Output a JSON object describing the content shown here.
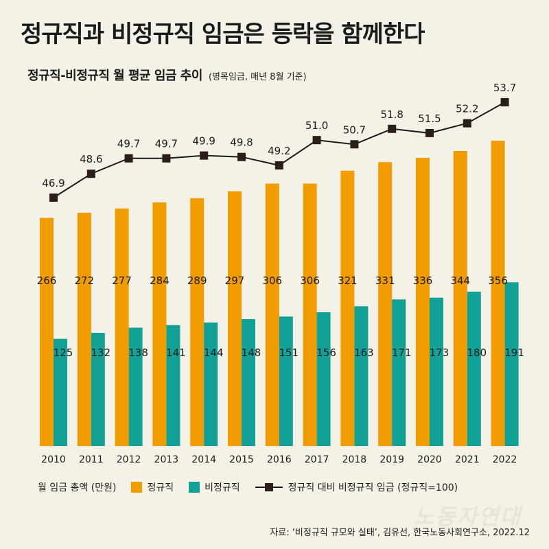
{
  "title": "정규직과 비정규직 임금은 등락을 함께한다",
  "subtitle": "정규직-비정규직 월 평균 임금 추이",
  "subtitle_note": "(명목임금, 매년 8월 기준)",
  "legend": {
    "unit_label": "월 임금 총액 (만원)",
    "regular": "정규직",
    "nonregular": "비정규직",
    "ratio": "정규직 대비 비정규직 임금 (정규직=100)"
  },
  "source": "자료: ‘비정규직 규모와 실태’, 김유선, 한국노동사회연구소, 2022.12",
  "watermark": "노동자연대",
  "colors": {
    "regular": "#f19c00",
    "nonregular": "#12a197",
    "ratio_line": "#1a1a1a",
    "ratio_marker": "#2b1d1a",
    "background": "#f4f2e6"
  },
  "chart_data": {
    "type": "bar",
    "categories": [
      "2010",
      "2011",
      "2012",
      "2013",
      "2014",
      "2015",
      "2016",
      "2017",
      "2018",
      "2019",
      "2020",
      "2021",
      "2022"
    ],
    "series": [
      {
        "name": "정규직",
        "type": "bar",
        "values": [
          266,
          272,
          277,
          284,
          289,
          297,
          306,
          306,
          321,
          331,
          336,
          344,
          356
        ]
      },
      {
        "name": "비정규직",
        "type": "bar",
        "values": [
          125,
          132,
          138,
          141,
          144,
          148,
          151,
          156,
          163,
          171,
          173,
          180,
          191
        ]
      },
      {
        "name": "정규직 대비 비정규직 임금 (정규직=100)",
        "type": "line",
        "values": [
          46.9,
          48.6,
          49.7,
          49.7,
          49.9,
          49.8,
          49.2,
          51.0,
          50.7,
          51.8,
          51.5,
          52.2,
          53.7
        ]
      }
    ],
    "value_labels_ratio": [
      "46.9",
      "48.6",
      "49.7",
      "49.7",
      "49.9",
      "49.8",
      "49.2",
      "51.0",
      "50.7",
      "51.8",
      "51.5",
      "52.2",
      "53.7"
    ],
    "ylabel": "월 임금 총액 (만원)",
    "y_axis_shown": false,
    "grid": false,
    "legend_position": "bottom"
  }
}
